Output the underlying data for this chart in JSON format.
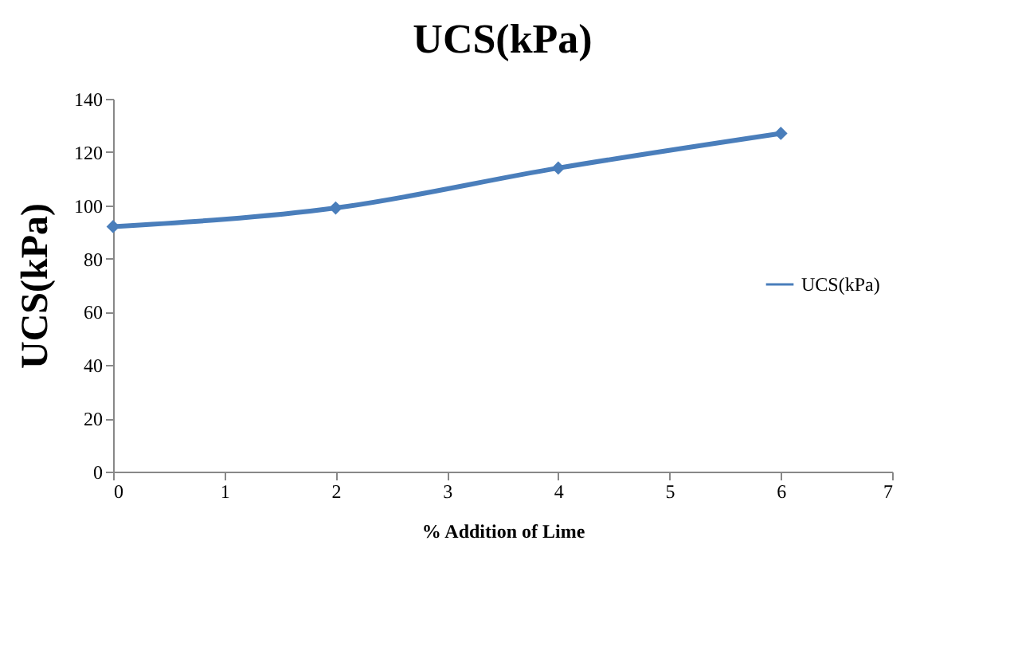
{
  "chart_data": {
    "type": "line",
    "title": "UCS(kPa)",
    "xlabel": "% Addition of Lime",
    "ylabel": "UCS(kPa)",
    "x": [
      0,
      2,
      4,
      6
    ],
    "series": [
      {
        "name": "UCS(kPa)",
        "color": "#4a7ebb",
        "values": [
          92,
          99,
          114,
          127
        ]
      }
    ],
    "xlim": [
      0,
      7
    ],
    "xticks": [
      0,
      1,
      2,
      3,
      4,
      5,
      6,
      7
    ],
    "ylim": [
      0,
      140
    ],
    "yticks": [
      0,
      20,
      40,
      60,
      80,
      100,
      120,
      140
    ],
    "grid": false,
    "legend": "right",
    "marker": "diamond",
    "line_style": "solid"
  }
}
